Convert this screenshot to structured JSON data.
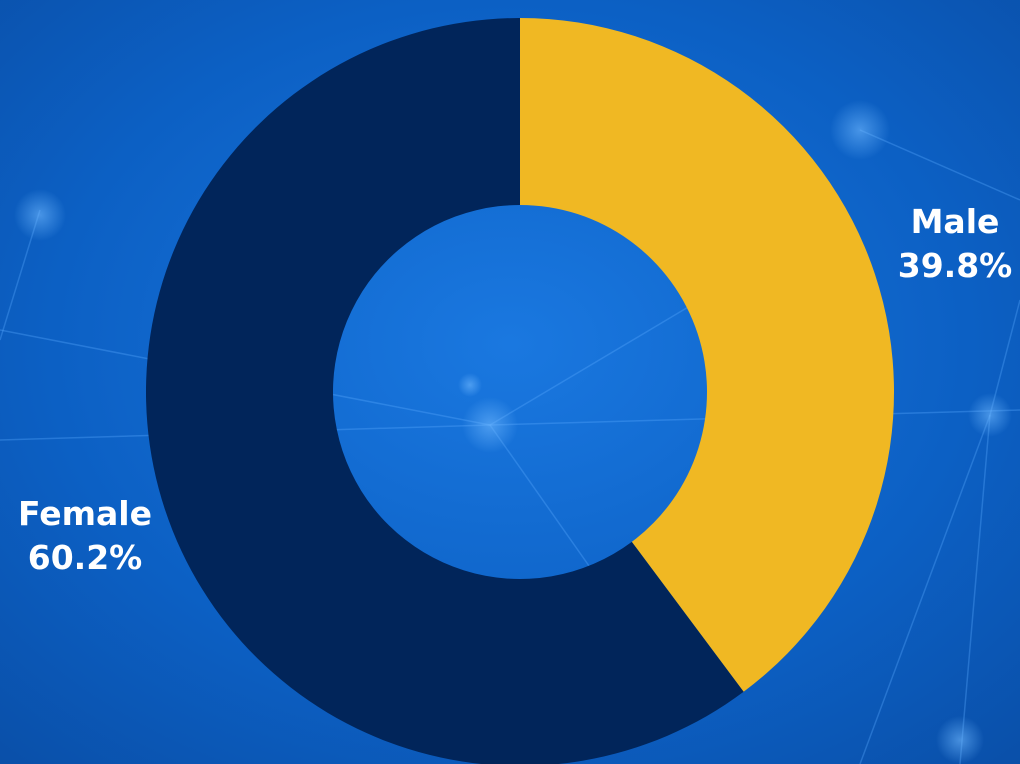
{
  "chart_data": {
    "type": "pie",
    "variant": "donut",
    "categories": [
      "Male",
      "Female"
    ],
    "values": [
      39.8,
      60.2
    ],
    "value_labels": [
      "39.8%",
      "60.2%"
    ],
    "colors": [
      "#f0b823",
      "#01255a"
    ],
    "title": "",
    "legend": "none"
  },
  "background": {
    "base_color": "#0a5fc2",
    "accent_color": "#3f9bff"
  }
}
